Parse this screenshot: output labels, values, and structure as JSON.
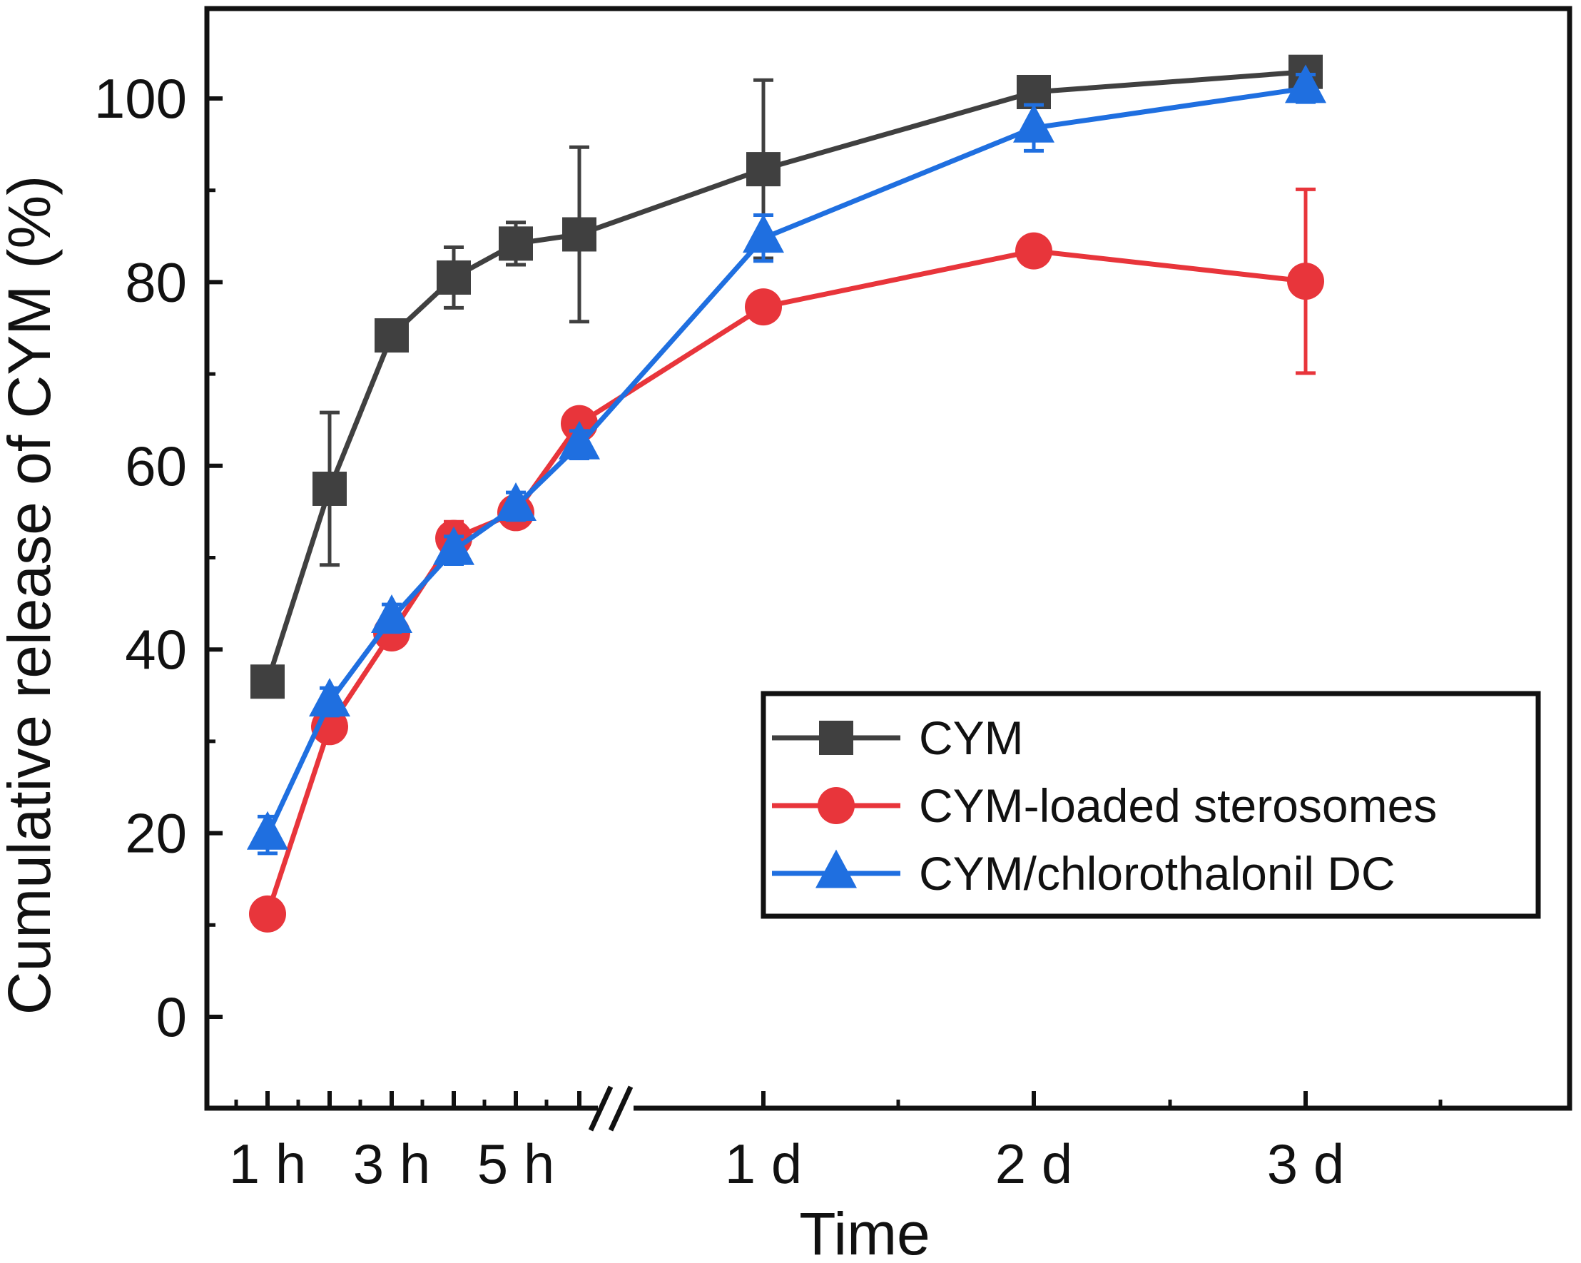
{
  "chart_data": {
    "type": "line",
    "title": "",
    "xlabel": "Time",
    "ylabel": "Cumulative release of CYM (%)",
    "ylim": [
      -10,
      110
    ],
    "yticks": [
      "0",
      "20",
      "40",
      "60",
      "80",
      "100"
    ],
    "ytick_values": [
      0,
      20,
      40,
      60,
      80,
      100
    ],
    "xtick_labels": [
      "1 h",
      "3 h",
      "5 h",
      "1 d",
      "2 d",
      "3 d"
    ],
    "x_axis_break": true,
    "legend_position": "lower-right",
    "series": [
      {
        "name": "CYM",
        "marker": "square",
        "color": "#404040",
        "x": [
          "1 h",
          "2 h",
          "3 h",
          "4 h",
          "5 h",
          "6 h",
          "1 d",
          "2 d",
          "3 d"
        ],
        "values": [
          36.5,
          57.5,
          74.2,
          80.5,
          84.2,
          85.2,
          92.3,
          100.7,
          102.9
        ],
        "errors": [
          1.0,
          8.3,
          0.5,
          3.3,
          2.3,
          9.5,
          9.7,
          0.8,
          0.5
        ]
      },
      {
        "name": "CYM-loaded sterosomes",
        "marker": "circle",
        "color": "#e8353b",
        "x": [
          "1 h",
          "2 h",
          "3 h",
          "4 h",
          "5 h",
          "6 h",
          "1 d",
          "2 d",
          "3 d"
        ],
        "values": [
          11.2,
          31.6,
          41.8,
          52.1,
          54.9,
          64.6,
          77.3,
          83.4,
          80.1
        ],
        "errors": [
          0.5,
          1.0,
          1.0,
          1.8,
          1.2,
          1.0,
          1.0,
          0.8,
          10.0
        ]
      },
      {
        "name": "CYM/chlorothalonil DC",
        "marker": "triangle",
        "color": "#1f6fe0",
        "x": [
          "1 h",
          "2 h",
          "3 h",
          "4 h",
          "5 h",
          "6 h",
          "1 d",
          "2 d",
          "3 d"
        ],
        "values": [
          19.8,
          34.3,
          43.4,
          50.8,
          55.6,
          62.3,
          84.8,
          96.8,
          101.1
        ],
        "errors": [
          2.0,
          1.5,
          1.5,
          1.5,
          1.5,
          1.5,
          2.5,
          2.5,
          1.5
        ]
      }
    ]
  }
}
